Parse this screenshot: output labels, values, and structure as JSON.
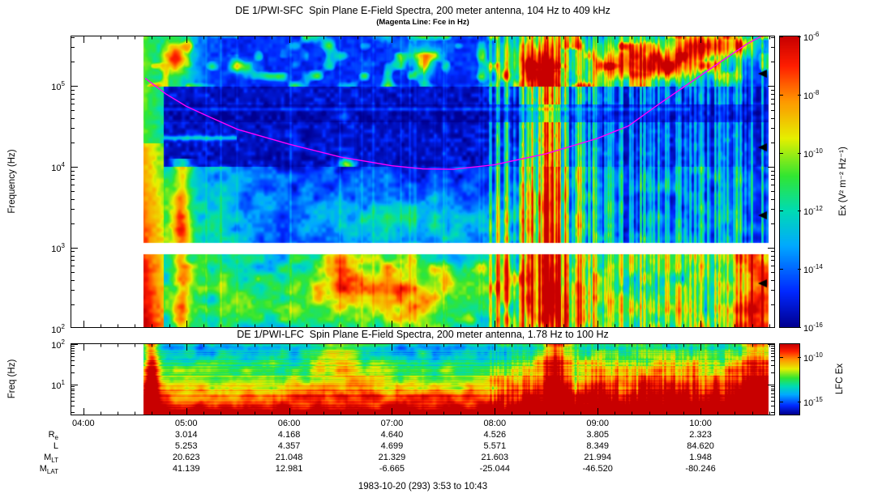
{
  "footer": "1983-10-20 (293) 3:53 to 10:43",
  "chart_data": [
    {
      "id": "sfc",
      "type": "heatmap",
      "title": "DE 1/PWI-SFC  Spin Plane E-Field Spectra, 200 meter antenna, 104 Hz to 409 kHz",
      "subtitle": "(Magenta Line: Fce in Hz)",
      "ylabel": "Frequency (Hz)",
      "y_scale": "log",
      "y_range_hz": [
        104,
        409000
      ],
      "y_tick_exponents": [
        2,
        3,
        4,
        5
      ],
      "x_start_hour": 3.8833,
      "x_end_hour": 10.7167,
      "data_start_hour": 4.58,
      "data_end_hour": 10.66,
      "data_gap_hz": [
        830,
        1150
      ],
      "colorbar": {
        "label": "Ex (V² m⁻² Hz⁻¹)",
        "tick_exponents": [
          -6,
          -8,
          -10,
          -12,
          -14,
          -16
        ],
        "min_value": 1e-16,
        "max_value": 1e-06
      },
      "overlay_line": {
        "name": "Fce",
        "color": "#ff00ff",
        "points_hour_hz": [
          [
            4.6,
            125000
          ],
          [
            4.8,
            80000
          ],
          [
            5.0,
            56000
          ],
          [
            5.25,
            40000
          ],
          [
            5.5,
            29000
          ],
          [
            6.0,
            19000
          ],
          [
            6.5,
            13200
          ],
          [
            7.0,
            10300
          ],
          [
            7.3,
            9400
          ],
          [
            7.6,
            9300
          ],
          [
            8.0,
            10600
          ],
          [
            8.5,
            14500
          ],
          [
            9.0,
            22500
          ],
          [
            9.3,
            32000
          ],
          [
            9.6,
            60000
          ],
          [
            9.9,
            110000
          ],
          [
            10.2,
            200000
          ],
          [
            10.45,
            330000
          ],
          [
            10.62,
            430000
          ]
        ]
      }
    },
    {
      "id": "lfc",
      "type": "heatmap",
      "title": "DE 1/PWI-LFC  Spin Plane E-Field Spectra, 200 meter antenna, 1.78 Hz to 100 Hz",
      "ylabel": "Freq (Hz)",
      "y_scale": "log",
      "y_range_hz": [
        1.78,
        100
      ],
      "y_tick_exponents": [
        1,
        2
      ],
      "x_start_hour": 3.8833,
      "x_end_hour": 10.7167,
      "data_start_hour": 4.58,
      "data_end_hour": 10.66,
      "colorbar": {
        "label": "LFC Ex",
        "tick_exponents": [
          -10,
          -15
        ]
      }
    }
  ],
  "x_axis": {
    "tick_labels": [
      "04:00",
      "05:00",
      "06:00",
      "07:00",
      "08:00",
      "09:00",
      "10:00"
    ],
    "tick_hours": [
      4,
      5,
      6,
      7,
      8,
      9,
      10
    ]
  },
  "ephemeris": {
    "row_labels": [
      {
        "base": "R",
        "sub": "e"
      },
      {
        "base": "L",
        "sub": ""
      },
      {
        "base": "M",
        "sub": "LT"
      },
      {
        "base": "M",
        "sub": "LAT"
      }
    ],
    "columns_hours": [
      5,
      6,
      7,
      8,
      9,
      10
    ],
    "rows": [
      [
        "3.014",
        "4.168",
        "4.640",
        "4.526",
        "3.805",
        "2.323"
      ],
      [
        "5.253",
        "4.357",
        "4.699",
        "5.571",
        "8.349",
        "84.620"
      ],
      [
        "20.623",
        "21.048",
        "21.329",
        "21.603",
        "21.994",
        "1.948"
      ],
      [
        "41.139",
        "12.981",
        "-6.665",
        "-25.044",
        "-46.520",
        "-80.246"
      ]
    ]
  }
}
